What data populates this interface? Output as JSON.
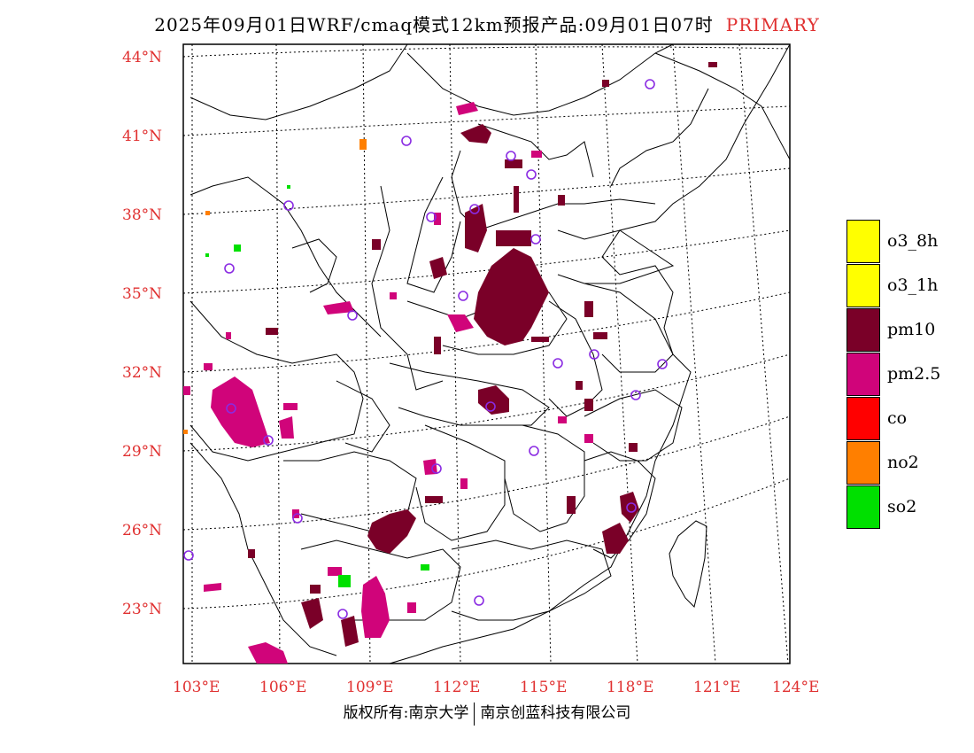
{
  "title": {
    "main": "2025年09月01日WRF/cmaq模式12km预报产品:09月01日07时",
    "tag": "PRIMARY"
  },
  "axes": {
    "lat_labels": [
      "44°N",
      "41°N",
      "38°N",
      "35°N",
      "32°N",
      "29°N",
      "26°N",
      "23°N"
    ],
    "lon_labels": [
      "103°E",
      "106°E",
      "109°E",
      "112°E",
      "115°E",
      "118°E",
      "121°E",
      "124°E"
    ]
  },
  "footer": {
    "left": "版权所有:南京大学",
    "right": "南京创蓝科技有限公司"
  },
  "legend": {
    "items": [
      {
        "label": "o3_8h",
        "color": "#ffff00"
      },
      {
        "label": "o3_1h",
        "color": "#ffff00"
      },
      {
        "label": "pm10",
        "color": "#7a0028"
      },
      {
        "label": "pm2.5",
        "color": "#d0047a"
      },
      {
        "label": "co",
        "color": "#ff0000"
      },
      {
        "label": "no2",
        "color": "#ff7f00"
      },
      {
        "label": "so2",
        "color": "#00e000"
      }
    ]
  },
  "colors": {
    "label_red": "#e03030",
    "station_circle": "#8a2be2",
    "pm10": "#7a0028",
    "pm25": "#d0047a",
    "no2": "#ff7f00",
    "so2": "#00e000"
  }
}
